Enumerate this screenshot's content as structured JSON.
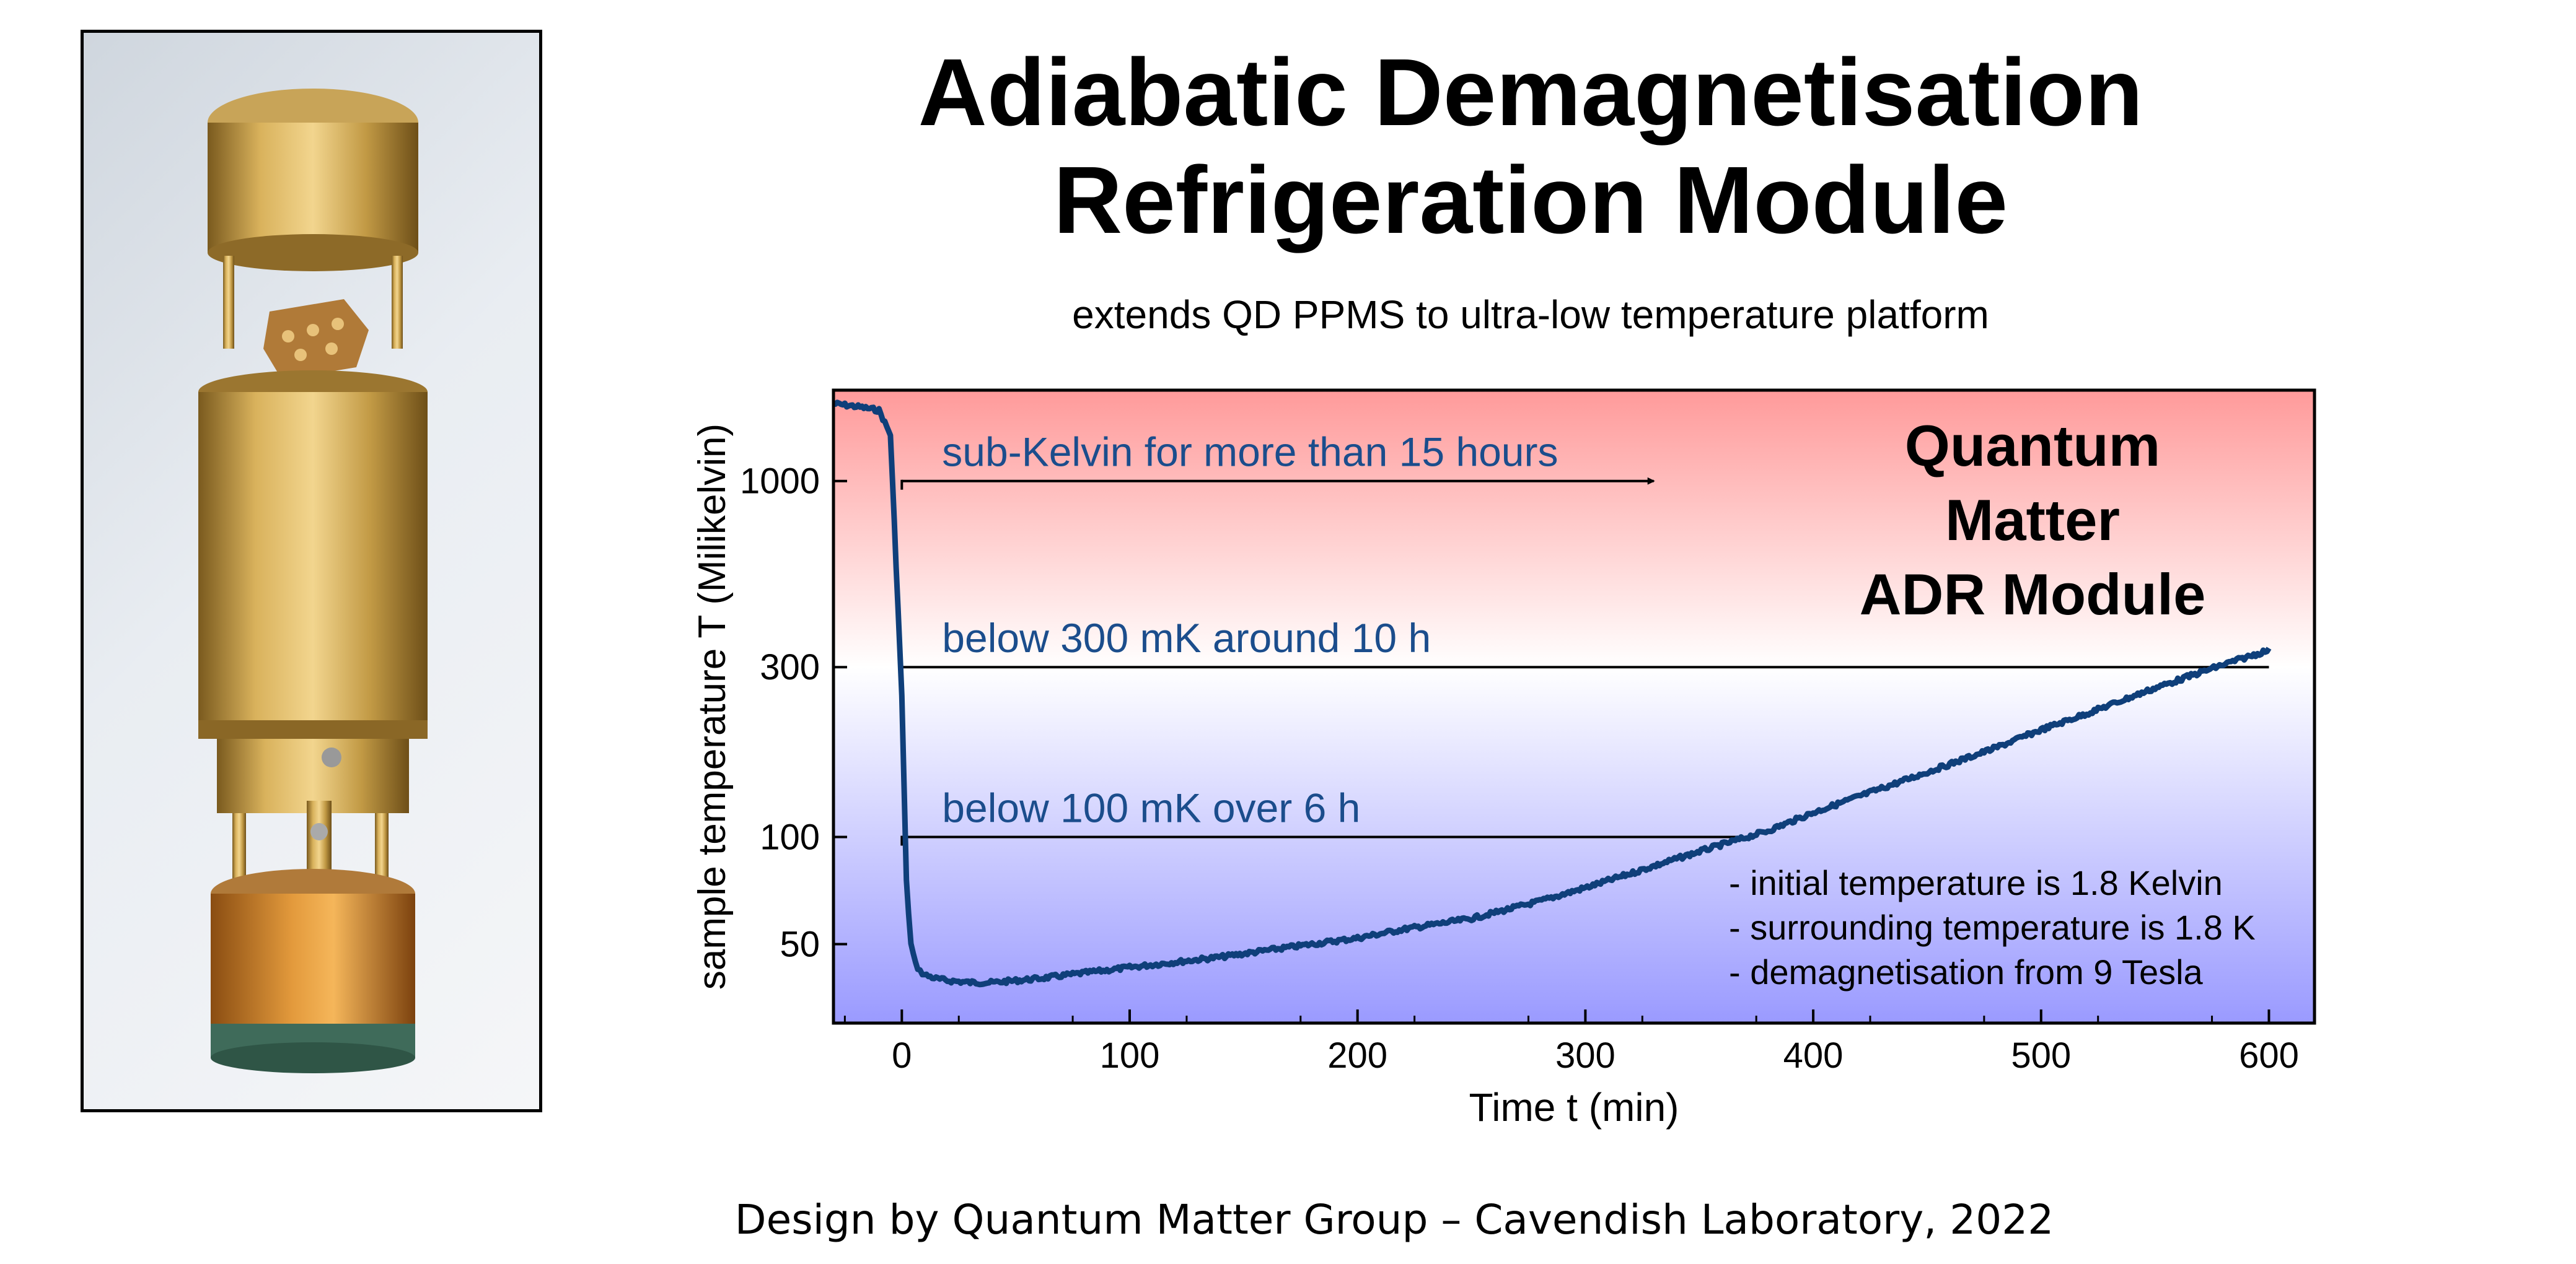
{
  "title_lines": [
    "Adiabatic Demagnetisation",
    "Refrigeration Module"
  ],
  "subtitle": "extends QD PPMS to ultra-low temperature platform",
  "footer": "Design by Quantum Matter Group – Cavendish Laboratory, 2022",
  "colors": {
    "curve": "#0f3f7a",
    "annotation_text": "#1b4d8c",
    "top_gradient": "#ff9a9a",
    "mid_gradient": "#ffffff",
    "bottom_gradient": "#9a9aff"
  },
  "chart_data": {
    "type": "line",
    "xlabel": "Time t (min)",
    "ylabel": "sample temperature T (Milikelvin)",
    "xlim": [
      -30,
      620
    ],
    "ylim": [
      30,
      1800
    ],
    "yscale": "log",
    "x_ticks": [
      "0",
      "100",
      "200",
      "300",
      "400",
      "500",
      "600"
    ],
    "y_ticks": [
      "50",
      "100",
      "300",
      "1000"
    ],
    "grid": false,
    "series": [
      {
        "x": [
          -30,
          -20,
          -10,
          -5,
          0,
          2,
          4,
          6,
          8,
          10,
          15,
          20,
          30,
          40,
          50,
          60,
          80,
          100,
          120,
          140,
          160,
          180,
          200,
          220,
          250,
          280,
          300,
          320,
          350,
          380,
          400,
          420,
          450,
          480,
          500,
          520,
          550,
          580,
          600
        ],
        "y": [
          1650,
          1620,
          1580,
          1350,
          250,
          75,
          50,
          44,
          42,
          41,
          40,
          39.5,
          39,
          39,
          39.5,
          40,
          41.5,
          43,
          44.5,
          46,
          48,
          50,
          52,
          55,
          59,
          66,
          72,
          79,
          91,
          104,
          117,
          130,
          152,
          178,
          200,
          222,
          262,
          305,
          335
        ]
      }
    ],
    "reference_lines": [
      {
        "y": 1000,
        "x": [
          0,
          330
        ],
        "arrow": true,
        "label": "sub-Kelvin for more than 15 hours"
      },
      {
        "y": 300,
        "x": [
          0,
          600
        ],
        "arrow": false,
        "label": "below 300 mK around 10 h"
      },
      {
        "y": 100,
        "x": [
          0,
          370
        ],
        "arrow": false,
        "label": "below 100 mK over 6 h"
      }
    ],
    "inset_title": [
      "Quantum",
      "Matter",
      "ADR Module"
    ],
    "notes": [
      "- initial temperature is 1.8 Kelvin",
      "- surrounding temperature is 1.8 K",
      "- demagnetisation from 9 Tesla"
    ]
  }
}
